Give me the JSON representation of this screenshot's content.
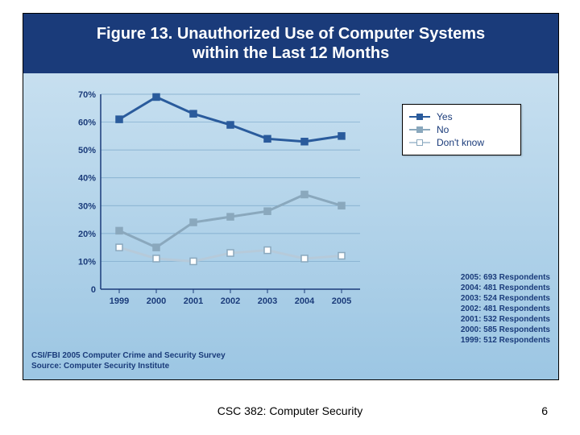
{
  "figure": {
    "title_line1": "Figure 13. Unauthorized Use of Computer Systems",
    "title_line2": "within the Last 12 Months",
    "title_color": "#ffffff",
    "title_bg": "#1a3b7a",
    "panel_bg_top": "#cfe4f2",
    "panel_bg_bottom": "#9cc6e3"
  },
  "chart": {
    "type": "line",
    "x_categories": [
      "1999",
      "2000",
      "2001",
      "2002",
      "2003",
      "2004",
      "2005"
    ],
    "ylim": [
      0,
      70
    ],
    "ytick_step": 10,
    "ytick_labels": [
      "0",
      "10%",
      "20%",
      "30%",
      "40%",
      "50%",
      "60%",
      "70%"
    ],
    "axis_color": "#1a3b7a",
    "grid_color": "#7aa7c9",
    "tick_font_size": 11,
    "x_label_font_size": 11,
    "series": [
      {
        "name": "Yes",
        "values": [
          61,
          69,
          63,
          59,
          54,
          53,
          55
        ],
        "color": "#2a5b9c",
        "line_width": 3,
        "marker_fill": "#2a5b9c",
        "marker_type": "square"
      },
      {
        "name": "No",
        "values": [
          21,
          15,
          24,
          26,
          28,
          34,
          30
        ],
        "color": "#8aa8bd",
        "line_width": 3,
        "marker_fill": "#8aa8bd",
        "marker_type": "square"
      },
      {
        "name": "Don't know",
        "values": [
          15,
          11,
          10,
          13,
          14,
          11,
          12
        ],
        "color": "#b6cada",
        "line_width": 3,
        "marker_fill": "#ffffff",
        "marker_border": "#8aa8bd",
        "marker_type": "square-outline"
      }
    ],
    "marker_size": 8
  },
  "legend": {
    "items": [
      {
        "label": "Yes",
        "color": "#2a5b9c",
        "fill": "#2a5b9c",
        "border": "#2a5b9c"
      },
      {
        "label": "No",
        "color": "#8aa8bd",
        "fill": "#8aa8bd",
        "border": "#8aa8bd"
      },
      {
        "label": "Don't know",
        "color": "#b6cada",
        "fill": "#ffffff",
        "border": "#8aa8bd"
      }
    ],
    "bg": "#ffffff",
    "border": "#000000",
    "font_size": 12
  },
  "respondents": [
    "2005: 693 Respondents",
    "2004: 481 Respondents",
    "2003: 524 Respondents",
    "2002: 481 Respondents",
    "2001: 532 Respondents",
    "2000: 585 Respondents",
    "1999: 512 Respondents"
  ],
  "source": {
    "line1": "CSI/FBI 2005 Computer Crime and Security Survey",
    "line2": "Source: Computer Security Institute"
  },
  "footer": {
    "course": "CSC 382: Computer Security",
    "page": "6"
  }
}
